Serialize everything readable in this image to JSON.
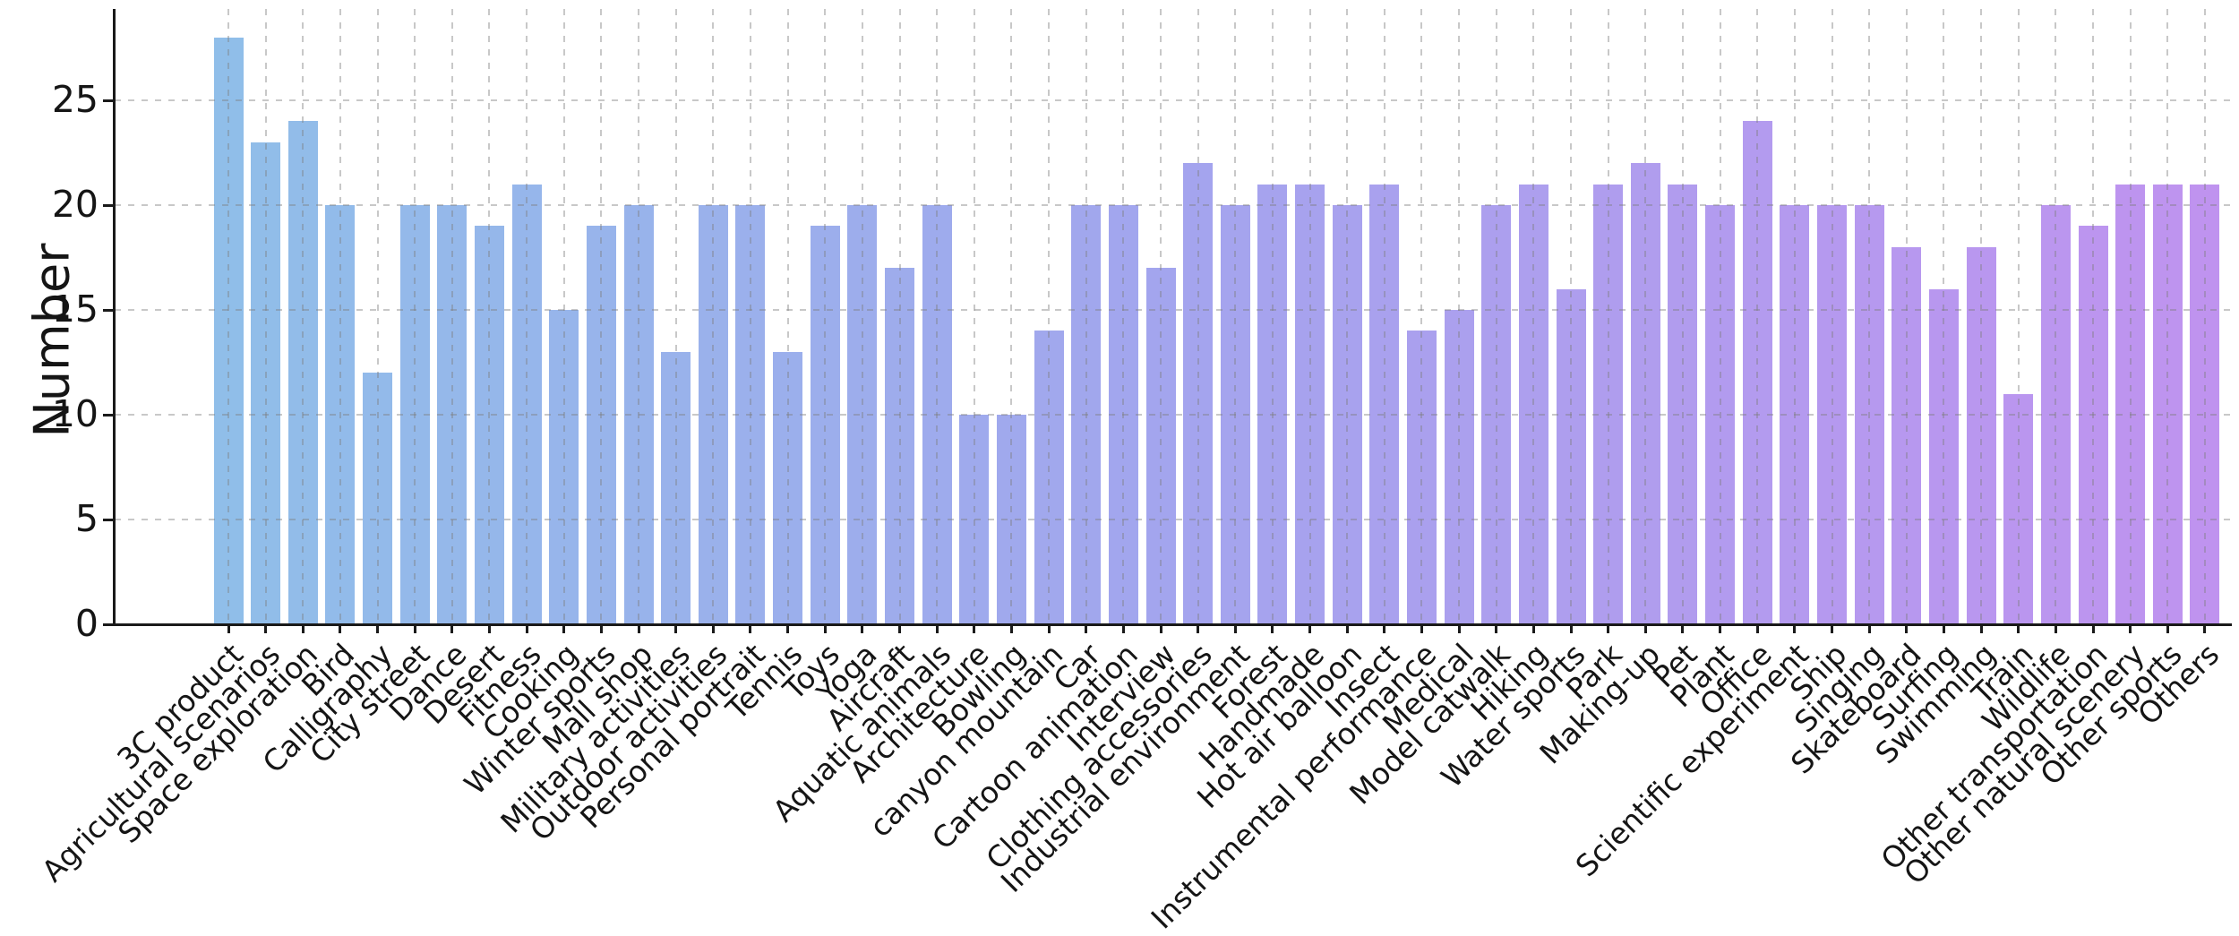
{
  "chart_data": {
    "type": "bar",
    "title": "",
    "xlabel": "",
    "ylabel": "Number",
    "yticks": [
      0,
      5,
      10,
      15,
      20,
      25
    ],
    "ylim": [
      0,
      29.4
    ],
    "grid": "dashed gray gridlines on both axes, visible through translucent bars",
    "legend_position": "none",
    "bar_color_gradient": [
      "#90bee9",
      "#a4a4ee",
      "#bf93ef"
    ],
    "categories": [
      "3C product",
      "Agricultural scenarios",
      "Space exploration",
      "Bird",
      "Calligraphy",
      "City street",
      "Dance",
      "Desert",
      "Fitness",
      "Cooking",
      "Winter sports",
      "Mall shop",
      "Military activities",
      "Outdoor activities",
      "Personal portrait",
      "Tennis",
      "Toys",
      "Yoga",
      "Aircraft",
      "Aquatic animals",
      "Architecture",
      "Bowling",
      "canyon mountain",
      "Car",
      "Cartoon animation",
      "Interview",
      "Clothing accessories",
      "Industrial environment",
      "Forest",
      "Handmade",
      "Hot air balloon",
      "Insect",
      "Instrumental performance",
      "Medical",
      "Model catwalk",
      "Hiking",
      "Water sports",
      "Park",
      "Making-up",
      "Pet",
      "Plant",
      "Office",
      "Scientific experiment",
      "Ship",
      "Singing",
      "Skateboard",
      "Surfing",
      "Swimming",
      "Train",
      "Wildlife",
      "Other transportation",
      "Other natural scenery",
      "Other sports",
      "Others"
    ],
    "values": [
      28,
      23,
      24,
      20,
      12,
      20,
      20,
      19,
      21,
      15,
      19,
      20,
      13,
      20,
      20,
      13,
      19,
      20,
      17,
      20,
      10,
      10,
      14,
      20,
      20,
      17,
      22,
      20,
      21,
      21,
      20,
      21,
      14,
      15,
      20,
      21,
      16,
      21,
      22,
      21,
      20,
      24,
      20,
      20,
      20,
      18,
      16,
      18,
      11,
      20,
      19,
      21,
      21,
      21
    ]
  }
}
